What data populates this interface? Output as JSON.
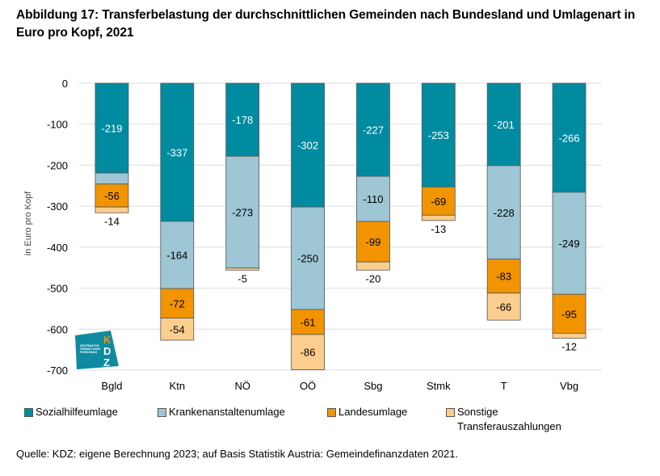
{
  "title": "Abbildung 17: Transferbelastung der durchschnittlichen Gemeinden nach Bundesland und Umlagenart in Euro pro Kopf, 2021",
  "source": "Quelle: KDZ: eigene Berechnung 2023; auf Basis Statistik Austria: Gemeindefinanzdaten 2021.",
  "logo": {
    "letters": [
      "K",
      "D",
      "Z"
    ],
    "text_lines": [
      "ZENTRUM FÜR",
      "VERWALTUNGS",
      "FORSCHUNG"
    ]
  },
  "chart_data": {
    "type": "bar",
    "stacked": true,
    "title": "Abbildung 17: Transferbelastung der durchschnittlichen Gemeinden nach Bundesland und Umlagenart in Euro pro Kopf, 2021",
    "xlabel": "",
    "ylabel": "in Euro pro Kopf",
    "ylim": [
      -700,
      0
    ],
    "yticks": [
      0,
      -100,
      -200,
      -300,
      -400,
      -500,
      -600,
      -700
    ],
    "grid": true,
    "legend_position": "bottom",
    "categories": [
      "Bgld",
      "Ktn",
      "NÖ",
      "OÖ",
      "Sbg",
      "Stmk",
      "T",
      "Vbg"
    ],
    "series": [
      {
        "name": "Sozialhilfeumlage",
        "color": "#008ba0",
        "label_color": "#ffffff",
        "values": [
          -219,
          -337,
          -178,
          -302,
          -227,
          -253,
          -201,
          -266
        ]
      },
      {
        "name": "Krankenanstaltenumlage",
        "color": "#9ec6d4",
        "label_color": "#000000",
        "values": [
          -27,
          -164,
          -273,
          -250,
          -110,
          0,
          -228,
          -249
        ]
      },
      {
        "name": "Landesumlage",
        "color": "#f29400",
        "label_color": "#000000",
        "values": [
          -56,
          -72,
          0,
          -61,
          -99,
          -69,
          -83,
          -95
        ]
      },
      {
        "name": "Sonstige Transferauszahlungen",
        "color": "#fbcd8f",
        "label_color": "#000000",
        "values": [
          -14,
          -54,
          -5,
          -86,
          -20,
          -13,
          -66,
          -12
        ]
      }
    ]
  },
  "legend": [
    {
      "label": "Sozialhilfeumlage",
      "color": "#008ba0"
    },
    {
      "label": "Krankenanstaltenumlage",
      "color": "#9ec6d4"
    },
    {
      "label": "Landesumlage",
      "color": "#f29400"
    },
    {
      "label": "Sonstige",
      "label2": "Transferauszahlungen",
      "color": "#fbcd8f"
    }
  ]
}
